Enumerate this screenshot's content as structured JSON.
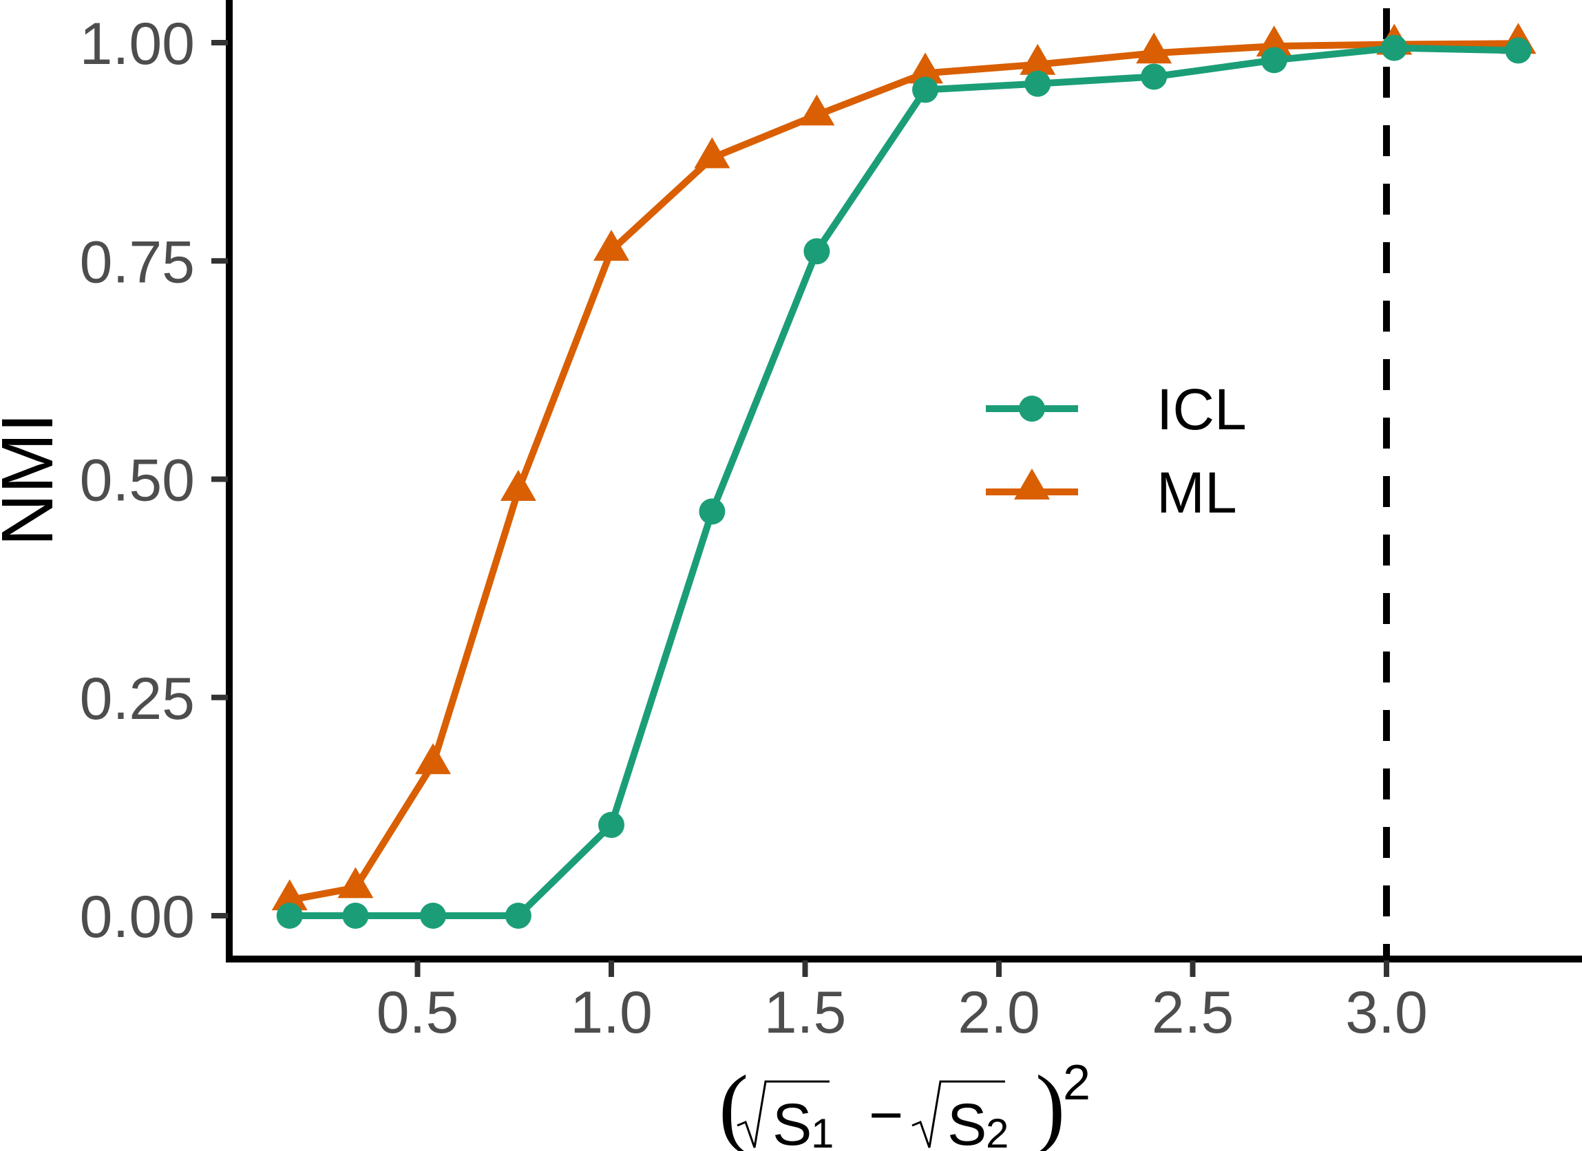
{
  "chart_data": {
    "type": "line",
    "title": "",
    "xlabel": "(√S1 − √S2)^2",
    "xlabel_parts": {
      "open_paren": "(",
      "radical": "√",
      "s1_letter": "S",
      "s1_sub": "1",
      "minus": "−",
      "s2_letter": "S",
      "s2_sub": "2",
      "close_paren": ")",
      "exponent": "2"
    },
    "ylabel": "NMI",
    "xlim": [
      0,
      3.4
    ],
    "ylim": [
      0,
      1.0
    ],
    "x_ticks": [
      0.5,
      1.0,
      1.5,
      2.0,
      2.5,
      3.0
    ],
    "x_tick_labels": [
      "0.5",
      "1.0",
      "1.5",
      "2.0",
      "2.5",
      "3.0"
    ],
    "y_ticks": [
      0,
      0.25,
      0.5,
      0.75,
      1.0
    ],
    "y_tick_labels": [
      "0.00",
      "0.25",
      "0.50",
      "0.75",
      "1.00"
    ],
    "grid": false,
    "legend_position": "center-right",
    "reference_line": {
      "type": "vertical",
      "x": 3.0,
      "style": "dashed",
      "color": "#000000"
    },
    "x": [
      0.17,
      0.34,
      0.54,
      0.76,
      1.0,
      1.26,
      1.53,
      1.81,
      2.1,
      2.4,
      2.71,
      3.02,
      3.34
    ],
    "series": [
      {
        "name": "ICL",
        "marker": "circle",
        "color": "#1B9E77",
        "values": [
          0.0,
          0.0,
          0.0,
          0.0,
          0.104,
          0.463,
          0.761,
          0.946,
          0.953,
          0.961,
          0.98,
          0.994,
          0.991
        ]
      },
      {
        "name": "ML",
        "marker": "triangle",
        "color": "#D95F02",
        "values": [
          0.018,
          0.032,
          0.174,
          0.487,
          0.762,
          0.868,
          0.917,
          0.965,
          0.975,
          0.988,
          0.996,
          0.998,
          0.999
        ]
      }
    ]
  }
}
